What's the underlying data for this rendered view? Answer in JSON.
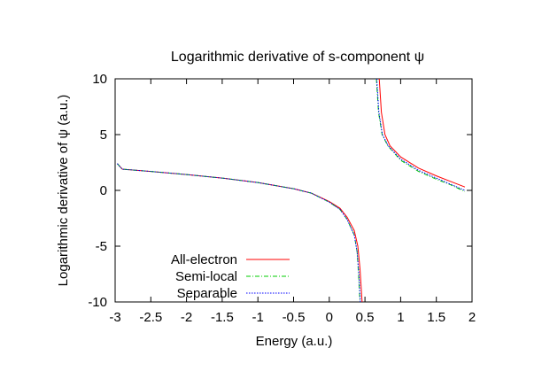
{
  "chart_data": {
    "type": "line",
    "title": "Logarithmic derivative of s-component ψ",
    "xlabel": "Energy (a.u.)",
    "ylabel": "Logarithmic derivative of ψ (a.u.)",
    "xlim": [
      -3,
      2
    ],
    "ylim": [
      -10,
      10
    ],
    "xticks": [
      -3,
      -2.5,
      -2,
      -1.5,
      -1,
      -0.5,
      0,
      0.5,
      1,
      1.5,
      2
    ],
    "yticks": [
      -10,
      -5,
      0,
      5,
      10
    ],
    "xtick_labels": [
      "-3",
      "-2.5",
      "-2",
      "-1.5",
      "-1",
      "-0.5",
      "0",
      "0.5",
      "1",
      "1.5",
      "2"
    ],
    "ytick_labels": [
      "-10",
      "-5",
      "0",
      "5",
      "10"
    ],
    "grid": false,
    "legend_position": "bottom-left",
    "series": [
      {
        "name": "All-electron",
        "color": "#ff0000",
        "dash": "solid",
        "segments": [
          [
            [
              -2.97,
              2.4
            ],
            [
              -2.9,
              1.9
            ],
            [
              -2.5,
              1.7
            ],
            [
              -2.0,
              1.42
            ],
            [
              -1.5,
              1.1
            ],
            [
              -1.0,
              0.7
            ],
            [
              -0.5,
              0.15
            ],
            [
              -0.25,
              -0.25
            ],
            [
              0.0,
              -1.0
            ],
            [
              0.15,
              -1.6
            ],
            [
              0.25,
              -2.4
            ],
            [
              0.35,
              -3.6
            ],
            [
              0.4,
              -5.0
            ],
            [
              0.43,
              -7.0
            ],
            [
              0.46,
              -10.0
            ]
          ],
          [
            [
              0.7,
              10.0
            ],
            [
              0.73,
              7.0
            ],
            [
              0.78,
              5.0
            ],
            [
              0.85,
              4.0
            ],
            [
              1.0,
              3.0
            ],
            [
              1.25,
              2.0
            ],
            [
              1.5,
              1.3
            ],
            [
              1.7,
              0.8
            ],
            [
              1.9,
              0.3
            ]
          ]
        ]
      },
      {
        "name": "Semi-local",
        "color": "#00cc00",
        "dash": "dashdot",
        "segments": [
          [
            [
              -2.97,
              2.4
            ],
            [
              -2.9,
              1.9
            ],
            [
              -2.5,
              1.7
            ],
            [
              -2.0,
              1.42
            ],
            [
              -1.5,
              1.1
            ],
            [
              -1.0,
              0.7
            ],
            [
              -0.5,
              0.15
            ],
            [
              -0.25,
              -0.25
            ],
            [
              0.0,
              -1.05
            ],
            [
              0.15,
              -1.7
            ],
            [
              0.25,
              -2.6
            ],
            [
              0.35,
              -4.0
            ],
            [
              0.39,
              -5.5
            ],
            [
              0.41,
              -7.5
            ],
            [
              0.43,
              -10.0
            ]
          ],
          [
            [
              0.66,
              10.0
            ],
            [
              0.69,
              7.0
            ],
            [
              0.74,
              5.0
            ],
            [
              0.82,
              4.0
            ],
            [
              1.0,
              2.7
            ],
            [
              1.25,
              1.7
            ],
            [
              1.5,
              1.0
            ],
            [
              1.7,
              0.5
            ],
            [
              1.9,
              -0.1
            ]
          ]
        ]
      },
      {
        "name": "Separable",
        "color": "#0000ff",
        "dash": "dotted",
        "segments": [
          [
            [
              -2.97,
              2.4
            ],
            [
              -2.9,
              1.9
            ],
            [
              -2.5,
              1.7
            ],
            [
              -2.0,
              1.42
            ],
            [
              -1.5,
              1.1
            ],
            [
              -1.0,
              0.7
            ],
            [
              -0.5,
              0.15
            ],
            [
              -0.25,
              -0.25
            ],
            [
              0.0,
              -1.05
            ],
            [
              0.15,
              -1.7
            ],
            [
              0.25,
              -2.6
            ],
            [
              0.35,
              -4.0
            ],
            [
              0.39,
              -5.5
            ],
            [
              0.415,
              -7.5
            ],
            [
              0.435,
              -10.0
            ]
          ],
          [
            [
              0.665,
              10.0
            ],
            [
              0.695,
              7.0
            ],
            [
              0.745,
              5.0
            ],
            [
              0.825,
              4.0
            ],
            [
              1.0,
              2.8
            ],
            [
              1.25,
              1.8
            ],
            [
              1.5,
              1.1
            ],
            [
              1.7,
              0.55
            ],
            [
              1.9,
              0.0
            ]
          ]
        ]
      }
    ]
  }
}
